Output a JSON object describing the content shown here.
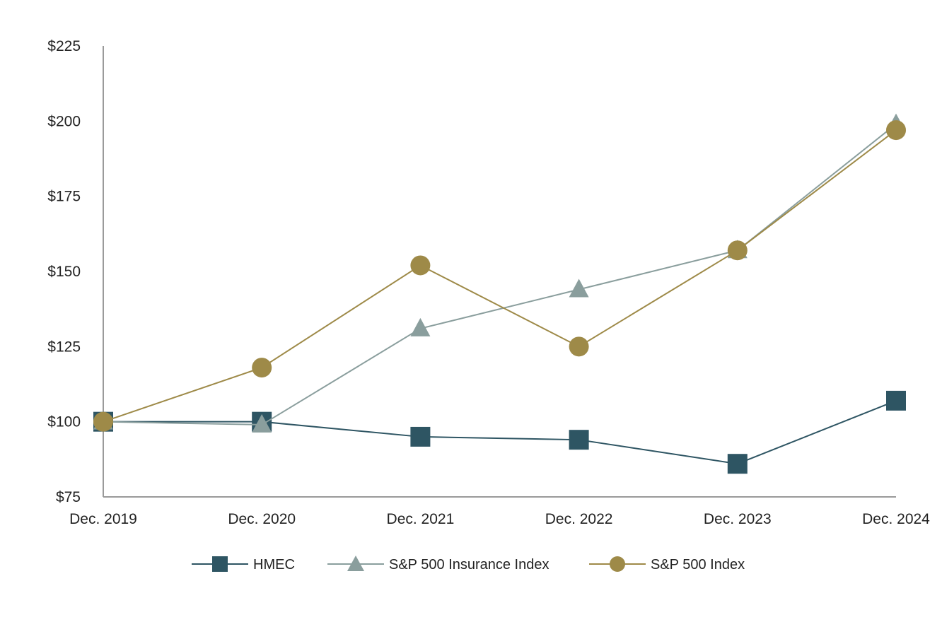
{
  "chart_data": {
    "type": "line",
    "title": "",
    "xlabel": "",
    "ylabel": "",
    "categories": [
      "Dec. 2019",
      "Dec. 2020",
      "Dec. 2021",
      "Dec. 2022",
      "Dec. 2023",
      "Dec. 2024"
    ],
    "ylim": [
      75,
      225
    ],
    "yticks": [
      75,
      100,
      125,
      150,
      175,
      200,
      225
    ],
    "ytick_labels": [
      "$75",
      "$100",
      "$125",
      "$150",
      "$175",
      "$200",
      "$225"
    ],
    "grid": false,
    "legend_position": "bottom",
    "series": [
      {
        "name": "HMEC",
        "marker": "square",
        "color": "#2e5563",
        "values": [
          100,
          100,
          95,
          94,
          86,
          107
        ]
      },
      {
        "name": "S&P 500 Insurance Index",
        "marker": "triangle",
        "color": "#8a9e9d",
        "values": [
          100,
          99,
          131,
          144,
          157,
          199
        ]
      },
      {
        "name": "S&P 500 Index",
        "marker": "circle",
        "color": "#9e8a48",
        "values": [
          100,
          118,
          152,
          125,
          157,
          197
        ]
      }
    ]
  }
}
